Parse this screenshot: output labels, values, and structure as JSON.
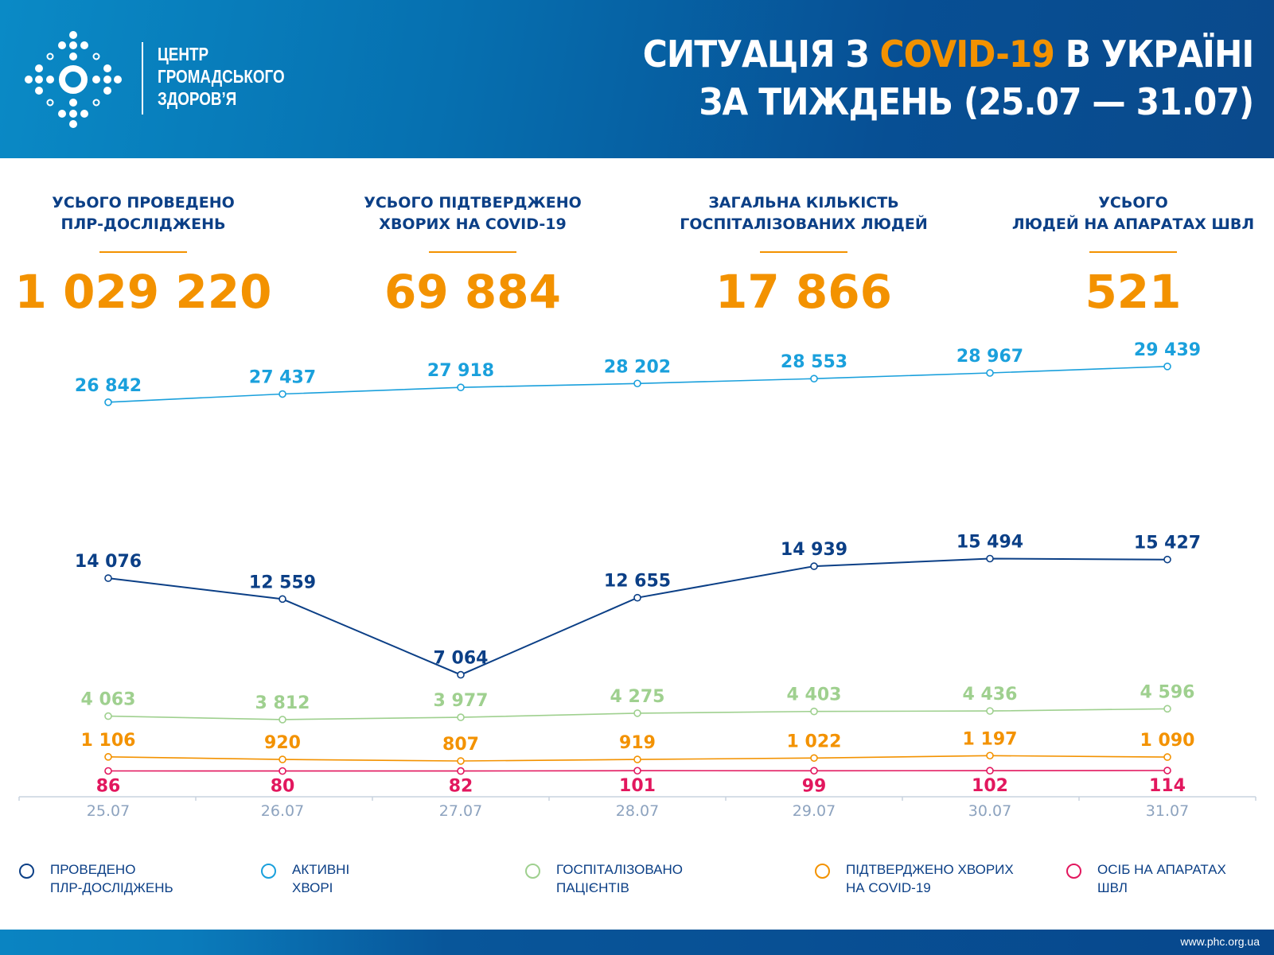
{
  "header": {
    "logo_text": [
      "ЦЕНТР",
      "ГРОМАДСЬКОГО",
      "ЗДОРОВ’Я"
    ],
    "title_part1": "СИТУАЦІЯ З ",
    "title_accent": "COVID-19",
    "title_part2": " В УКРАЇНІ",
    "title_line2": "ЗА ТИЖДЕНЬ (25.07 — 31.07)"
  },
  "stats": [
    {
      "label_line1": "УСЬОГО ПРОВЕДЕНО",
      "label_line2": "ПЛР-ДОСЛІДЖЕНЬ",
      "value": "1 029 220"
    },
    {
      "label_line1": "УСЬОГО ПІДТВЕРДЖЕНО",
      "label_line2": "ХВОРИХ НА COVID-19",
      "value": "69 884"
    },
    {
      "label_line1": "ЗАГАЛЬНА КІЛЬКІСТЬ",
      "label_line2": "ГОСПІТАЛІЗОВАНИХ ЛЮДЕЙ",
      "value": "17 866"
    },
    {
      "label_line1": "УСЬОГО",
      "label_line2": "ЛЮДЕЙ НА АПАРАТАХ ШВЛ",
      "value": "521"
    }
  ],
  "chart_data": {
    "type": "line",
    "categories": [
      "25.07",
      "26.07",
      "27.07",
      "28.07",
      "29.07",
      "30.07",
      "31.07"
    ],
    "series": [
      {
        "name": "ПРОВЕДЕНО ПЛР-ДОСЛІДЖЕНЬ",
        "color": "#0b3f86",
        "values": [
          14076,
          12559,
          7064,
          12655,
          14939,
          15494,
          15427
        ],
        "labels": [
          "14 076",
          "12 559",
          "7 064",
          "12 655",
          "14 939",
          "15 494",
          "15 427"
        ]
      },
      {
        "name": "АКТИВНІ ХВОРІ",
        "color": "#1aa0dc",
        "values": [
          26842,
          27437,
          27918,
          28202,
          28553,
          28967,
          29439
        ],
        "labels": [
          "26 842",
          "27 437",
          "27 918",
          "28 202",
          "28 553",
          "28 967",
          "29 439"
        ]
      },
      {
        "name": "ГОСПІТАЛІЗОВАНО ПАЦІЄНТІВ",
        "color": "#9fd08f",
        "values": [
          4063,
          3812,
          3977,
          4275,
          4403,
          4436,
          4596
        ],
        "labels": [
          "4 063",
          "3 812",
          "3 977",
          "4 275",
          "4 403",
          "4 436",
          "4 596"
        ]
      },
      {
        "name": "ПІДТВЕРДЖЕНО ХВОРИХ НА COVID-19",
        "color": "#f39200",
        "values": [
          1106,
          920,
          807,
          919,
          1022,
          1197,
          1090
        ],
        "labels": [
          "1 106",
          "920",
          "807",
          "919",
          "1 022",
          "1 197",
          "1 090"
        ]
      },
      {
        "name": "ОСІБ НА АПАРАТАХ ШВЛ",
        "color": "#e2175e",
        "values": [
          86,
          80,
          82,
          101,
          99,
          102,
          114
        ],
        "labels": [
          "86",
          "80",
          "82",
          "101",
          "99",
          "102",
          "114"
        ]
      }
    ],
    "legend_position": "bottom",
    "grid": false,
    "xlabel": "",
    "ylabel": ""
  },
  "legend": [
    {
      "line1": "ПРОВЕДЕНО",
      "line2": "ПЛР-ДОСЛІДЖЕНЬ",
      "color": "#0b3f86"
    },
    {
      "line1": "АКТИВНІ",
      "line2": "ХВОРІ",
      "color": "#1aa0dc"
    },
    {
      "line1": "ГОСПІТАЛІЗОВАНО",
      "line2": "ПАЦІЄНТІВ",
      "color": "#9fd08f"
    },
    {
      "line1": "ПІДТВЕРДЖЕНО ХВОРИХ",
      "line2": "НА COVID-19",
      "color": "#f39200"
    },
    {
      "line1": "ОСІБ НА АПАРАТАХ",
      "line2": "ШВЛ",
      "color": "#e2175e"
    }
  ],
  "footer": {
    "url": "www.phc.org.ua"
  }
}
